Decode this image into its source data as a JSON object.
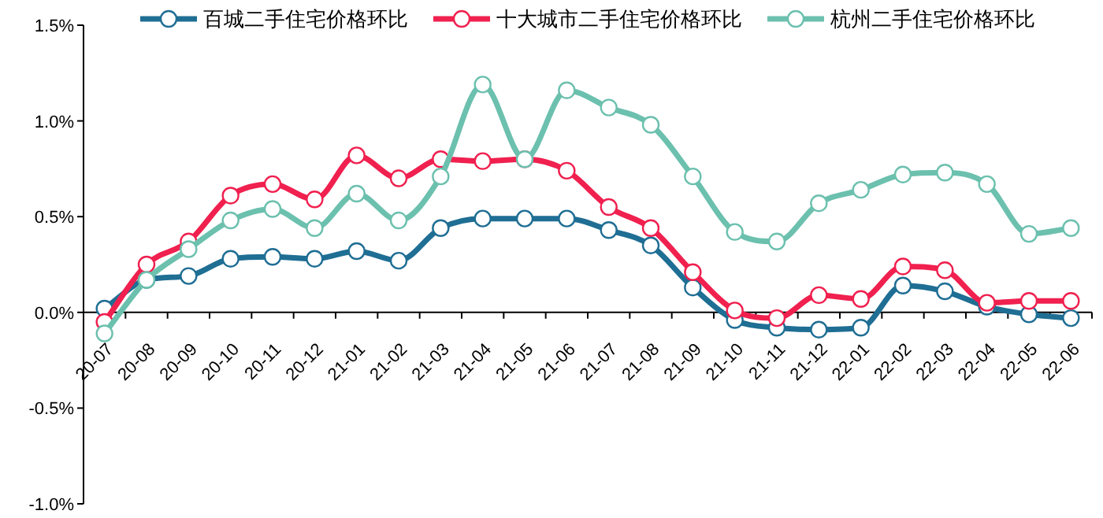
{
  "chart_data": {
    "type": "line",
    "categories": [
      "20-07",
      "20-08",
      "20-09",
      "20-10",
      "20-11",
      "20-12",
      "21-01",
      "21-02",
      "21-03",
      "21-04",
      "21-05",
      "21-06",
      "21-07",
      "21-08",
      "21-09",
      "21-10",
      "21-11",
      "21-12",
      "22-01",
      "22-02",
      "22-03",
      "22-04",
      "22-05",
      "22-06"
    ],
    "series": [
      {
        "name": "百城二手住宅价格环比",
        "color": "#1f6e94",
        "values": [
          0.02,
          0.17,
          0.19,
          0.28,
          0.29,
          0.28,
          0.32,
          0.27,
          0.44,
          0.49,
          0.49,
          0.49,
          0.43,
          0.35,
          0.13,
          -0.04,
          -0.08,
          -0.09,
          -0.08,
          0.14,
          0.11,
          0.03,
          -0.01,
          -0.03
        ]
      },
      {
        "name": "十大城市二手住宅价格环比",
        "color": "#f0204f",
        "values": [
          -0.05,
          0.25,
          0.37,
          0.61,
          0.67,
          0.59,
          0.82,
          0.7,
          0.8,
          0.79,
          0.8,
          0.74,
          0.55,
          0.44,
          0.21,
          0.01,
          -0.03,
          0.09,
          0.07,
          0.24,
          0.22,
          0.05,
          0.06,
          0.06
        ]
      },
      {
        "name": "杭州二手住宅价格环比",
        "color": "#6cc0ae",
        "values": [
          -0.11,
          0.17,
          0.33,
          0.48,
          0.54,
          0.44,
          0.62,
          0.48,
          0.71,
          1.19,
          0.8,
          1.16,
          1.07,
          0.98,
          0.71,
          0.42,
          0.37,
          0.57,
          0.64,
          0.72,
          0.73,
          0.67,
          0.41,
          0.44
        ]
      }
    ],
    "ylim": [
      -1.0,
      1.5
    ],
    "yticks": [
      {
        "value": -1.0,
        "label": "-1.0%"
      },
      {
        "value": -0.5,
        "label": "-0.5%"
      },
      {
        "value": 0,
        "label": "0.0%"
      },
      {
        "value": 0.5,
        "label": "0.5%"
      },
      {
        "value": 1.0,
        "label": "1.0%"
      },
      {
        "value": 1.5,
        "label": "1.5%"
      }
    ],
    "legend": "top",
    "grid": false,
    "marker": "circle",
    "line_style": "solid"
  }
}
